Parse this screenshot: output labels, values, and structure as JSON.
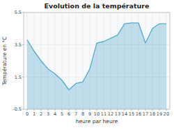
{
  "chart_data": {
    "type": "area",
    "title": "Evolution de la température",
    "x_label": "heure par heure",
    "y_label": "Température en °C",
    "x": [
      0,
      1,
      2,
      3,
      4,
      5,
      6,
      7,
      8,
      9,
      10,
      11,
      12,
      13,
      14,
      15,
      16,
      17,
      18,
      19,
      20
    ],
    "values": [
      3.8,
      3.1,
      2.5,
      2.0,
      1.7,
      1.3,
      0.7,
      1.1,
      1.2,
      2.0,
      3.6,
      3.7,
      3.9,
      4.1,
      4.8,
      4.85,
      4.85,
      3.6,
      4.5,
      4.8,
      4.8
    ],
    "color": "#55aacc",
    "xlim": [
      -0.5,
      20.5
    ],
    "ylim": [
      -0.5,
      5.5
    ],
    "xticks": [
      0,
      1,
      2,
      3,
      4,
      5,
      6,
      7,
      8,
      9,
      10,
      11,
      12,
      13,
      14,
      15,
      16,
      17,
      18,
      19,
      20
    ],
    "yticks": [
      -0.5,
      1.5,
      3.5,
      5.5
    ],
    "grid": true
  }
}
